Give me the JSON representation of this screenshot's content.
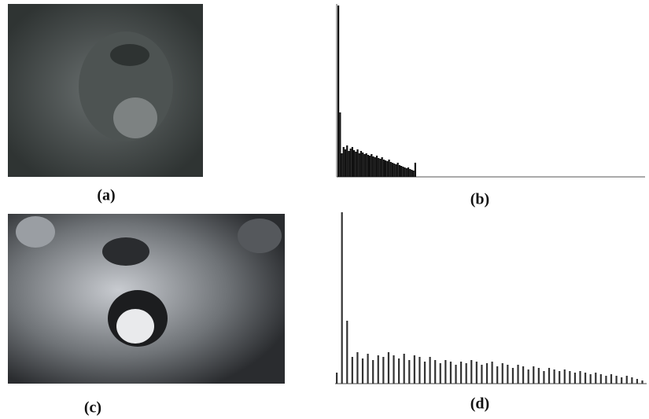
{
  "panels": [
    {
      "label": "(a)"
    },
    {
      "label": "(b)",
      "histogram": [
        218,
        82,
        30,
        38,
        35,
        40,
        33,
        36,
        38,
        34,
        32,
        35,
        30,
        33,
        31,
        29,
        30,
        28,
        27,
        29,
        26,
        25,
        27,
        24,
        23,
        25,
        22,
        21,
        20,
        22,
        19,
        18,
        17,
        16,
        18,
        15,
        14,
        13,
        12,
        11,
        12,
        10,
        9,
        8,
        18
      ]
    },
    {
      "label": "(c)"
    },
    {
      "label": "(d)",
      "histogram": [
        14,
        218,
        80,
        34,
        40,
        32,
        38,
        30,
        36,
        34,
        40,
        36,
        32,
        38,
        30,
        36,
        34,
        28,
        34,
        30,
        26,
        30,
        28,
        24,
        28,
        26,
        30,
        28,
        24,
        26,
        28,
        22,
        26,
        24,
        20,
        24,
        22,
        18,
        22,
        20,
        16,
        20,
        18,
        16,
        18,
        16,
        14,
        16,
        14,
        12,
        14,
        12,
        10,
        12,
        10,
        8,
        10,
        8,
        6,
        4
      ]
    }
  ]
}
